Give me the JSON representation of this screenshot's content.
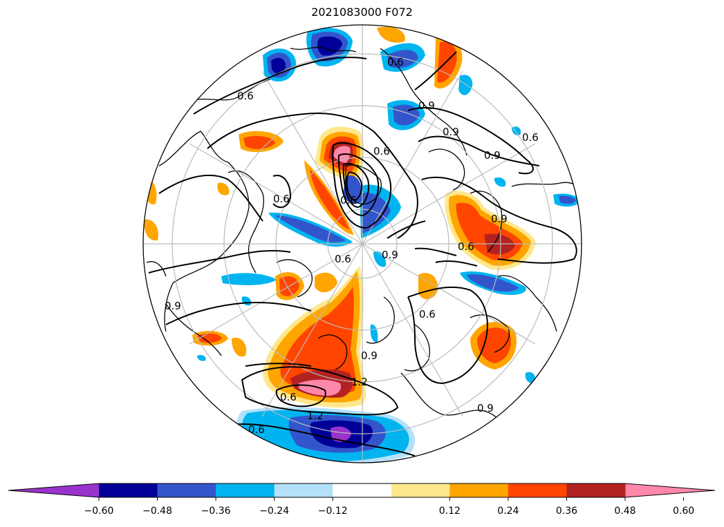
{
  "title": "2021083000 F072",
  "colorbar": {
    "colors": [
      "#9933cc",
      "#000099",
      "#3355cc",
      "#00b4f0",
      "#b4e0fa",
      "#ffffff",
      "#ffe88c",
      "#ffa500",
      "#ff4500",
      "#b22222",
      "#ff88aa"
    ],
    "ticks": [
      "−0.60",
      "−0.48",
      "−0.36",
      "−0.24",
      "−0.12",
      "0.12",
      "0.24",
      "0.36",
      "0.48",
      "0.60"
    ],
    "extend": "both"
  },
  "contour_labels": [
    "0.6",
    "0.6",
    "0.9",
    "0.9",
    "0.6",
    "0.9",
    "0.9",
    "0.6",
    "0.9",
    "0.6",
    "0.6",
    "0.6",
    "0.9",
    "0.6",
    "0.9",
    "1.2",
    "0.6",
    "1.2",
    "0.6",
    "0.9",
    "0.6"
  ],
  "projection": "north-polar-stereographic"
}
